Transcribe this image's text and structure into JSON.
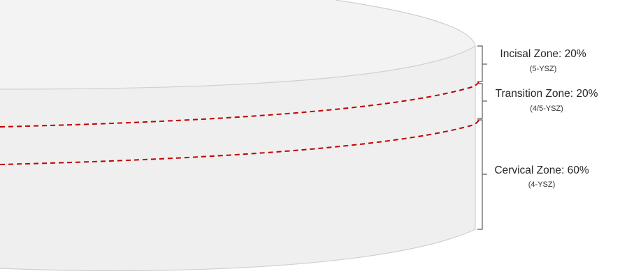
{
  "colors": {
    "disc_fill": "#efefef",
    "disc_top_fill": "#f3f3f3",
    "disc_outline": "#cfcfcf",
    "boundary_line": "#c00000",
    "bracket": "#595959",
    "text": "#262626"
  },
  "zones": [
    {
      "name": "Incisal Zone: 20%",
      "material": "(5-YSZ)",
      "percent": 20
    },
    {
      "name": "Transition Zone: 20%",
      "material": "(4/5-YSZ)",
      "percent": 20
    },
    {
      "name": "Cervical Zone: 60%",
      "material": "(4-YSZ)",
      "percent": 60
    }
  ]
}
